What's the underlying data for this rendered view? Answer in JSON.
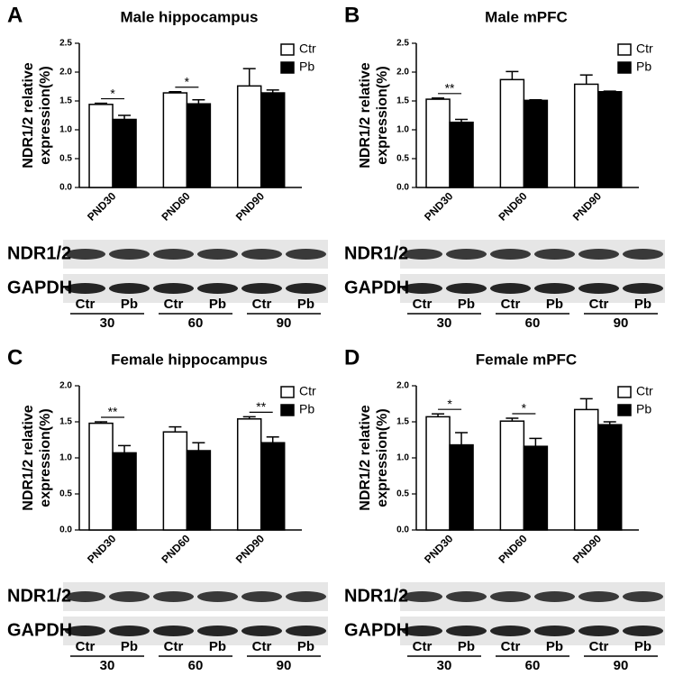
{
  "chart_data": [
    {
      "type": "bar",
      "panel": "A",
      "title": "Male  hippocampus",
      "ylabel": [
        "NDR1/2 relative",
        "expression(%)"
      ],
      "categories": [
        "PND30",
        "PND60",
        "PND90"
      ],
      "series": [
        {
          "name": "Ctr",
          "color": "#ffffff",
          "values": [
            1.44,
            1.64,
            1.76
          ],
          "errors": [
            0.02,
            0.02,
            0.3
          ]
        },
        {
          "name": "Pb",
          "color": "#000000",
          "values": [
            1.18,
            1.45,
            1.64
          ],
          "errors": [
            0.07,
            0.07,
            0.05
          ]
        }
      ],
      "significance": [
        "*",
        "*",
        null
      ],
      "ylim": [
        0,
        2.5
      ],
      "yticks": [
        {
          "value": 0,
          "label": "0.0"
        },
        {
          "value": 0.5,
          "label": "0.5"
        },
        {
          "value": 1,
          "label": "1.0"
        },
        {
          "value": 1.5,
          "label": "1.5"
        },
        {
          "value": 2,
          "label": "2.0"
        },
        {
          "value": 2.5,
          "label": "2.5"
        }
      ],
      "blot": {
        "rows": [
          "NDR1/2",
          "GAPDH"
        ],
        "lanes": [
          "Ctr",
          "Pb",
          "Ctr",
          "Pb",
          "Ctr",
          "Pb"
        ],
        "groups": [
          "30",
          "60",
          "90"
        ]
      }
    },
    {
      "type": "bar",
      "panel": "B",
      "title": "Male mPFC",
      "ylabel": [
        "NDR1/2 relative",
        "expression(%)"
      ],
      "categories": [
        "PND30",
        "PND60",
        "PND90"
      ],
      "series": [
        {
          "name": "Ctr",
          "color": "#ffffff",
          "values": [
            1.53,
            1.87,
            1.79
          ],
          "errors": [
            0.02,
            0.14,
            0.16
          ]
        },
        {
          "name": "Pb",
          "color": "#000000",
          "values": [
            1.13,
            1.51,
            1.66
          ],
          "errors": [
            0.05,
            0.01,
            0.01
          ]
        }
      ],
      "significance": [
        "**",
        null,
        null
      ],
      "ylim": [
        0,
        2.5
      ],
      "yticks": [
        {
          "value": 0,
          "label": "0.0"
        },
        {
          "value": 0.5,
          "label": "0.5"
        },
        {
          "value": 1,
          "label": "1.0"
        },
        {
          "value": 1.5,
          "label": "1.5"
        },
        {
          "value": 2,
          "label": "2.0"
        },
        {
          "value": 2.5,
          "label": "2.5"
        }
      ],
      "blot": {
        "rows": [
          "NDR1/2",
          "GAPDH"
        ],
        "lanes": [
          "Ctr",
          "Pb",
          "Ctr",
          "Pb",
          "Ctr",
          "Pb"
        ],
        "groups": [
          "30",
          "60",
          "90"
        ]
      }
    },
    {
      "type": "bar",
      "panel": "C",
      "title": "Female hippocampus",
      "ylabel": [
        "NDR1/2 relative",
        "expression(%)"
      ],
      "categories": [
        "PND30",
        "PND60",
        "PND90"
      ],
      "series": [
        {
          "name": "Ctr",
          "color": "#ffffff",
          "values": [
            1.48,
            1.36,
            1.54
          ],
          "errors": [
            0.02,
            0.07,
            0.03
          ]
        },
        {
          "name": "Pb",
          "color": "#000000",
          "values": [
            1.07,
            1.1,
            1.21
          ],
          "errors": [
            0.1,
            0.11,
            0.08
          ]
        }
      ],
      "significance": [
        "**",
        null,
        "**"
      ],
      "ylim": [
        0,
        2
      ],
      "yticks": [
        {
          "value": 0,
          "label": "0.0"
        },
        {
          "value": 0.5,
          "label": "0.5"
        },
        {
          "value": 1,
          "label": "1.0"
        },
        {
          "value": 1.5,
          "label": "1.5"
        },
        {
          "value": 2,
          "label": "2.0"
        }
      ],
      "blot": {
        "rows": [
          "NDR1/2",
          "GAPDH"
        ],
        "lanes": [
          "Ctr",
          "Pb",
          "Ctr",
          "Pb",
          "Ctr",
          "Pb"
        ],
        "groups": [
          "30",
          "60",
          "90"
        ]
      }
    },
    {
      "type": "bar",
      "panel": "D",
      "title": "Female mPFC",
      "ylabel": [
        "NDR1/2 relative",
        "expression(%)"
      ],
      "categories": [
        "PND30",
        "PND60",
        "PND90"
      ],
      "series": [
        {
          "name": "Ctr",
          "color": "#ffffff",
          "values": [
            1.57,
            1.51,
            1.67
          ],
          "errors": [
            0.04,
            0.04,
            0.15
          ]
        },
        {
          "name": "Pb",
          "color": "#000000",
          "values": [
            1.18,
            1.16,
            1.46
          ],
          "errors": [
            0.17,
            0.11,
            0.04
          ]
        }
      ],
      "significance": [
        "*",
        "*",
        null
      ],
      "ylim": [
        0,
        2
      ],
      "yticks": [
        {
          "value": 0,
          "label": "0.0"
        },
        {
          "value": 0.5,
          "label": "0.5"
        },
        {
          "value": 1,
          "label": "1.0"
        },
        {
          "value": 1.5,
          "label": "1.5"
        },
        {
          "value": 2,
          "label": "2.0"
        }
      ],
      "blot": {
        "rows": [
          "NDR1/2",
          "GAPDH"
        ],
        "lanes": [
          "Ctr",
          "Pb",
          "Ctr",
          "Pb",
          "Ctr",
          "Pb"
        ],
        "groups": [
          "30",
          "60",
          "90"
        ]
      }
    }
  ]
}
